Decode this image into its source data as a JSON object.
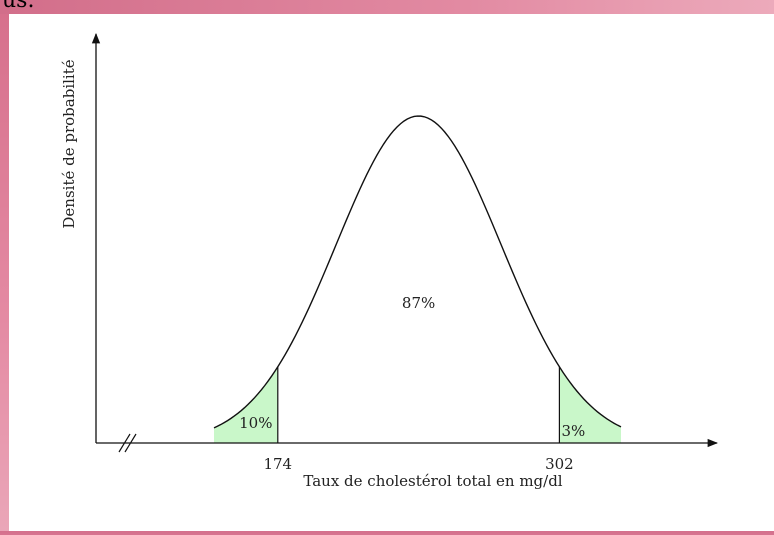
{
  "page": {
    "top_fragment": "us."
  },
  "chart_data": {
    "type": "area",
    "distribution": "normal",
    "mean": 238,
    "xlim": [
      145,
      330
    ],
    "ylabel": "Densité de probabilité",
    "xlabel": "Taux de cholestérol total en mg/dl",
    "ticks": [
      {
        "value": 174,
        "label": "174"
      },
      {
        "value": 302,
        "label": "302"
      }
    ],
    "regions": [
      {
        "from": 145,
        "to": 174,
        "percent_label": "10%",
        "shaded": true
      },
      {
        "from": 174,
        "to": 302,
        "percent_label": "87%",
        "shaded": false
      },
      {
        "from": 302,
        "to": 330,
        "percent_label": "3%",
        "shaded": true
      }
    ],
    "shade_color": "#c9f7c9",
    "axis_break": true
  }
}
